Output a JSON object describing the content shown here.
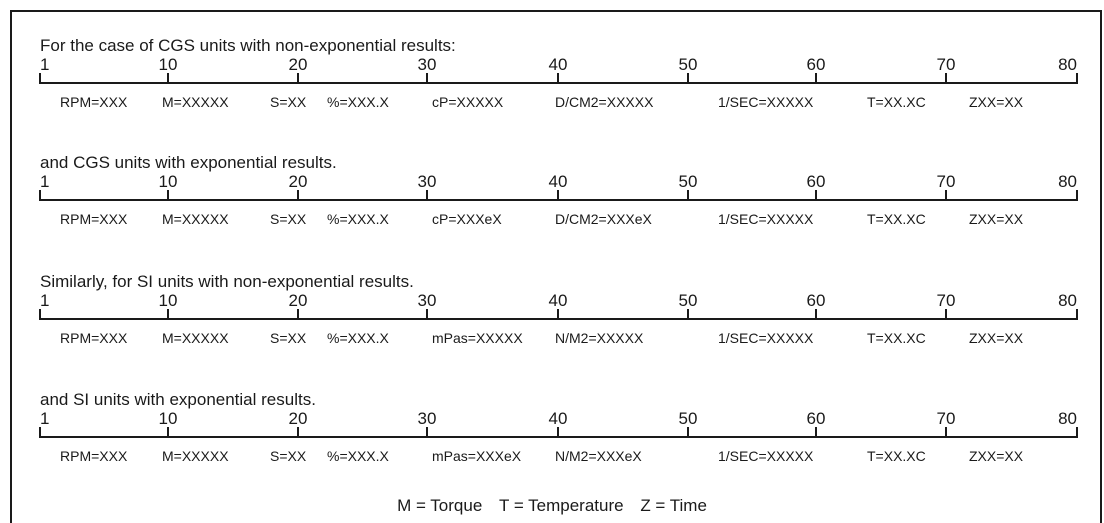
{
  "ruler_labels": [
    "1",
    "10",
    "20",
    "30",
    "40",
    "50",
    "60",
    "70",
    "80"
  ],
  "sections": [
    {
      "heading": "For the case of CGS units with non-exponential results:",
      "fields": [
        "RPM=XXX",
        "M=XXXXX",
        "S=XX",
        "%=XXX.X",
        "cP=XXXXX",
        "D/CM2=XXXXX",
        "1/SEC=XXXXX",
        "T=XX.XC",
        "ZXX=XX"
      ]
    },
    {
      "heading": "and CGS units with exponential results.",
      "fields": [
        "RPM=XXX",
        "M=XXXXX",
        "S=XX",
        "%=XXX.X",
        "cP=XXXeX",
        "D/CM2=XXXeX",
        "1/SEC=XXXXX",
        "T=XX.XC",
        "ZXX=XX"
      ]
    },
    {
      "heading": "Similarly, for SI units with non-exponential results.",
      "fields": [
        "RPM=XXX",
        "M=XXXXX",
        "S=XX",
        "%=XXX.X",
        "mPas=XXXXX",
        "N/M2=XXXXX",
        "1/SEC=XXXXX",
        "T=XX.XC",
        "ZXX=XX"
      ]
    },
    {
      "heading": "and SI units with exponential results.",
      "fields": [
        "RPM=XXX",
        "M=XXXXX",
        "S=XX",
        "%=XXX.X",
        "mPas=XXXeX",
        "N/M2=XXXeX",
        "1/SEC=XXXXX",
        "T=XX.XC",
        "ZXX=XX"
      ]
    }
  ],
  "legend": [
    "M = Torque",
    "T = Temperature",
    "Z = Time"
  ]
}
